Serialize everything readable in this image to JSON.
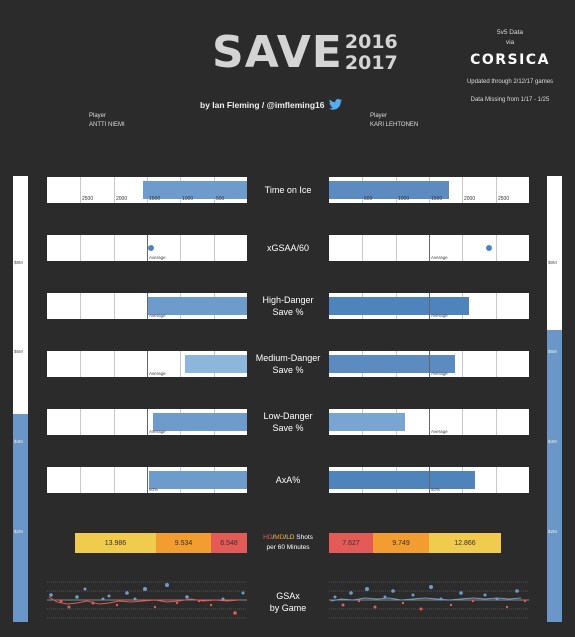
{
  "header": {
    "title_main": "SAVE",
    "year_top": "2016",
    "year_bottom": "2017",
    "byline": "by Ian Fleming / @imfleming16"
  },
  "source": {
    "line1": "5v5 Data",
    "line2": "via",
    "logo": "CORSICA",
    "updated": "Updated through 2/12/17 games",
    "missing": "Data Missing from 1/17 - 1/25"
  },
  "players": {
    "left": {
      "label": "Player",
      "name": "ANTTI NIEMI"
    },
    "right": {
      "label": "Player",
      "name": "KARI LEHTONEN"
    }
  },
  "salary_scale": {
    "left_ticks": [
      "$8M",
      "$6M",
      "$4M",
      "$2M"
    ],
    "right_ticks": [
      "$8M",
      "$6M",
      "$4M",
      "$2M"
    ],
    "left_level_m": 4.2,
    "right_level_m": 5.9,
    "max_m": 9
  },
  "metrics": [
    {
      "label_line1": "Time on Ice",
      "label_line2": "",
      "left_pct": 0.52,
      "right_pct": 0.6,
      "left_fill": "#6d9bcc",
      "right_fill": "#5b8bc0",
      "left_axis": [
        "2500",
        "2000",
        "1500",
        "1000",
        "500"
      ],
      "right_axis": [
        "500",
        "1000",
        "1500",
        "2000",
        "2500"
      ]
    },
    {
      "label_line1": "xGSAA/60",
      "label_line2": "",
      "left_dot": 0.52,
      "right_dot": 0.8,
      "avg_label": "Average"
    },
    {
      "label_line1": "High-Danger",
      "label_line2": "Save %",
      "left_pct": 0.5,
      "right_pct": 0.7,
      "left_fill": "#6d9bcc",
      "right_fill": "#4f83bc",
      "avg_label": "Average"
    },
    {
      "label_line1": "Medium-Danger",
      "label_line2": "Save %",
      "left_pct": 0.31,
      "right_pct": 0.63,
      "left_fill": "#8db6dc",
      "right_fill": "#5b8bc0",
      "avg_label": "Average"
    },
    {
      "label_line1": "Low-Danger",
      "label_line2": "Save %",
      "left_pct": 0.47,
      "right_pct": 0.38,
      "left_fill": "#6d9bcc",
      "right_fill": "#79a5d2",
      "avg_label": "Average"
    },
    {
      "label_line1": "AxA%",
      "label_line2": "",
      "left_pct": 0.49,
      "right_pct": 0.73,
      "left_fill": "#6d9bcc",
      "right_fill": "#4f83bc",
      "avg_label": "50%"
    }
  ],
  "shots": {
    "title_hd": "HD",
    "title_md": "MD",
    "title_ld": "LD",
    "title_rest": " Shots",
    "subtitle": "per 60 Minutes",
    "left": {
      "ld": "13.986",
      "md": "9.534",
      "hd": "6.548"
    },
    "right": {
      "hd": "7.627",
      "md": "9.749",
      "ld": "12.866"
    },
    "colors": {
      "hd": "#e35a56",
      "md": "#f39c30",
      "ld": "#f1cb4d"
    }
  },
  "gsax": {
    "label_line1": "GSAx",
    "label_line2": "by Game"
  }
}
